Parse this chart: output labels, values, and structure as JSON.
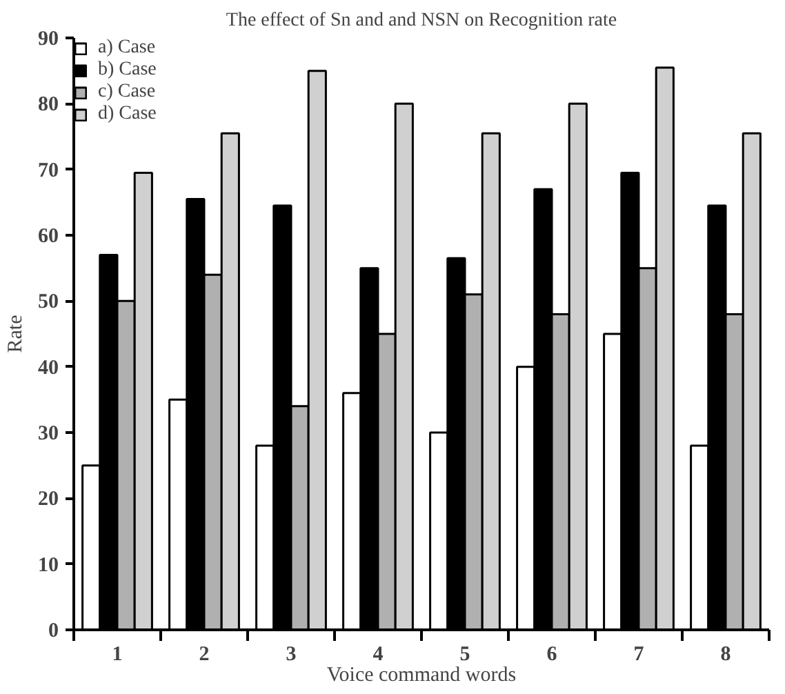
{
  "chart_data": {
    "type": "bar",
    "title": "The effect of Sn and and NSN on Recognition rate",
    "xlabel": "Voice command words",
    "ylabel": "Rate",
    "categories": [
      "1",
      "2",
      "3",
      "4",
      "5",
      "6",
      "7",
      "8"
    ],
    "series": [
      {
        "name": "a) Case",
        "color": "#ffffff",
        "values": [
          25,
          35,
          28,
          36,
          30,
          40,
          45,
          28
        ]
      },
      {
        "name": "b) Case",
        "color": "#000000",
        "values": [
          57,
          65.5,
          64.5,
          55,
          56.5,
          67,
          69.5,
          64.5
        ]
      },
      {
        "name": "c) Case",
        "color": "#b0b0b0",
        "values": [
          50,
          54,
          34,
          45,
          51,
          48,
          55,
          48
        ]
      },
      {
        "name": "d) Case",
        "color": "#d0d0d0",
        "values": [
          69.5,
          75.5,
          85,
          80,
          75.5,
          80,
          85.5,
          75.5
        ]
      }
    ],
    "ylim": [
      0,
      90
    ],
    "yticks": [
      0,
      10,
      20,
      30,
      40,
      50,
      60,
      70,
      80,
      90
    ],
    "grid": false,
    "legend": "top left"
  }
}
